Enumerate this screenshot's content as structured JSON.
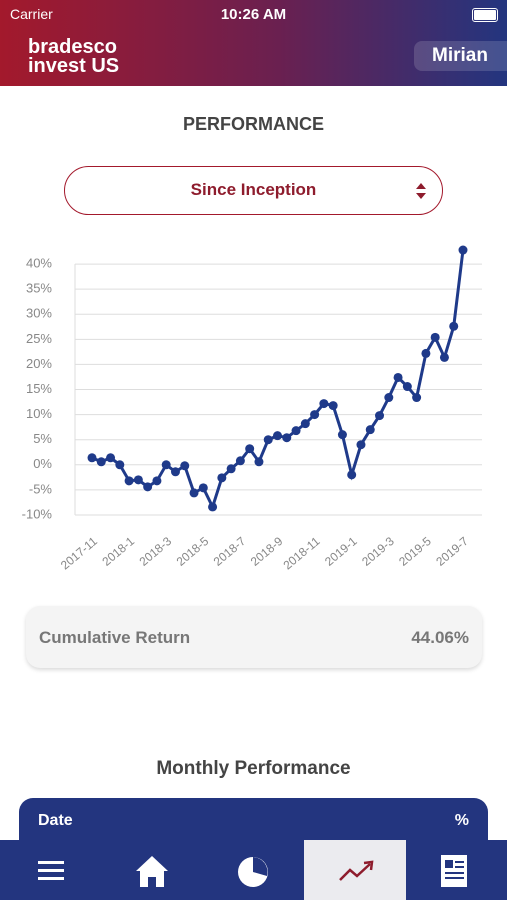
{
  "status_bar": {
    "carrier": "Carrier",
    "time": "10:26 AM"
  },
  "header": {
    "logo_line1": "bradesco",
    "logo_line2": "invest US",
    "user": "Mirian"
  },
  "page_title": "PERFORMANCE",
  "period_select": "Since Inception",
  "chart_data": {
    "type": "line",
    "categories": [
      "2017-11",
      null,
      null,
      null,
      "2018-1",
      null,
      null,
      null,
      "2018-3",
      null,
      null,
      null,
      "2018-5",
      null,
      null,
      null,
      "2018-7",
      null,
      null,
      null,
      "2018-9",
      null,
      null,
      null,
      "2018-11",
      null,
      null,
      null,
      "2019-1",
      null,
      null,
      null,
      "2019-3",
      null,
      null,
      null,
      "2019-5",
      null,
      null,
      null,
      "2019-7"
    ],
    "series": [
      {
        "color": "#1f3a8a",
        "values": [
          1.4,
          0.6,
          1.4,
          0,
          -3.2,
          -3,
          -4.4,
          -3.2,
          0,
          -1.4,
          -0.2,
          -5.6,
          -4.6,
          -8.4,
          -2.6,
          -0.8,
          0.8,
          3.2,
          0.6,
          5,
          5.8,
          5.4,
          6.8,
          8.2,
          10,
          12.2,
          11.8,
          6,
          -2,
          4,
          7,
          9.8,
          13.4,
          17.4,
          15.6,
          13.4,
          22.2,
          25.4,
          21.4,
          27.6,
          42.8
        ]
      }
    ],
    "ylim": [
      -12,
      44
    ],
    "yticks": [
      {
        "value": -10,
        "label": "-10%"
      },
      {
        "value": -5,
        "label": "-5%"
      },
      {
        "value": 0,
        "label": "0%"
      },
      {
        "value": 5,
        "label": "5%"
      },
      {
        "value": 10,
        "label": "10%"
      },
      {
        "value": 15,
        "label": "15%"
      },
      {
        "value": 20,
        "label": "20%"
      },
      {
        "value": 25,
        "label": "25%"
      },
      {
        "value": 30,
        "label": "30%"
      },
      {
        "value": 35,
        "label": "35%"
      },
      {
        "value": 40,
        "label": "40%"
      }
    ],
    "grid": true
  },
  "summary": {
    "label": "Cumulative Return",
    "value": "44.06%"
  },
  "monthly": {
    "title": "Monthly Performance",
    "columns": [
      "Date",
      "%"
    ]
  }
}
